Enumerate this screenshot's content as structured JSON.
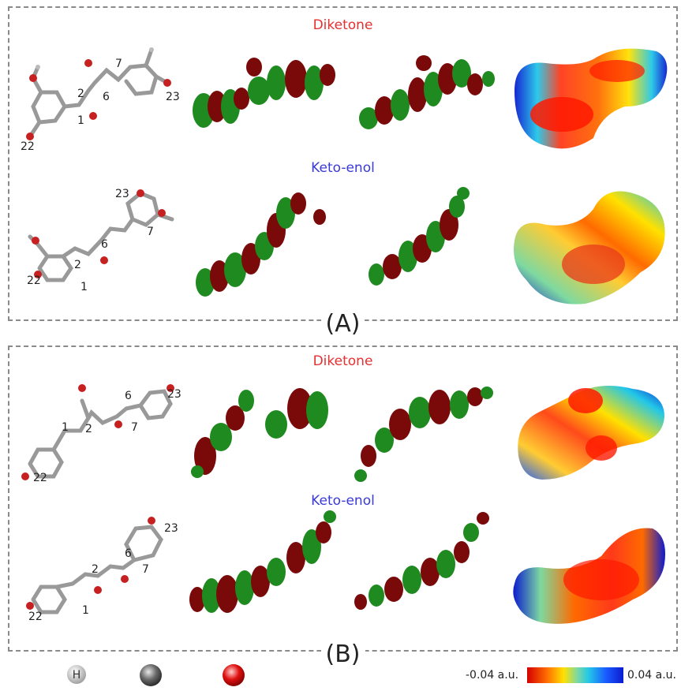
{
  "panels": [
    {
      "label": "(A)",
      "rows": [
        {
          "title": "Diketone",
          "numbers": {
            "n2": "2",
            "n1": "1",
            "n22": "22",
            "n6": "6",
            "n7": "7",
            "n23": "23"
          }
        },
        {
          "title": "Keto-enol",
          "numbers": {
            "n23": "23",
            "n7": "7",
            "n6": "6",
            "n2": "2",
            "n1": "1",
            "n22": "22"
          }
        }
      ]
    },
    {
      "label": "(B)",
      "rows": [
        {
          "title": "Diketone",
          "numbers": {
            "n1": "1",
            "n2": "2",
            "n6": "6",
            "n7": "7",
            "n23": "23",
            "n22": "22"
          }
        },
        {
          "title": "Keto-enol",
          "numbers": {
            "n23": "23",
            "n6": "6",
            "n7": "7",
            "n2": "2",
            "n1": "1",
            "n22": "22"
          }
        }
      ]
    }
  ],
  "legend": {
    "atoms": [
      "H",
      "C",
      "O"
    ],
    "colorbar": {
      "min_label": "-0.04 a.u.",
      "max_label": "0.04 a.u."
    }
  },
  "colors": {
    "title_red": "#e53030",
    "title_blue": "#3a3ad6",
    "orbital_green": "#1f8a1f",
    "orbital_red": "#7a0a0a"
  }
}
